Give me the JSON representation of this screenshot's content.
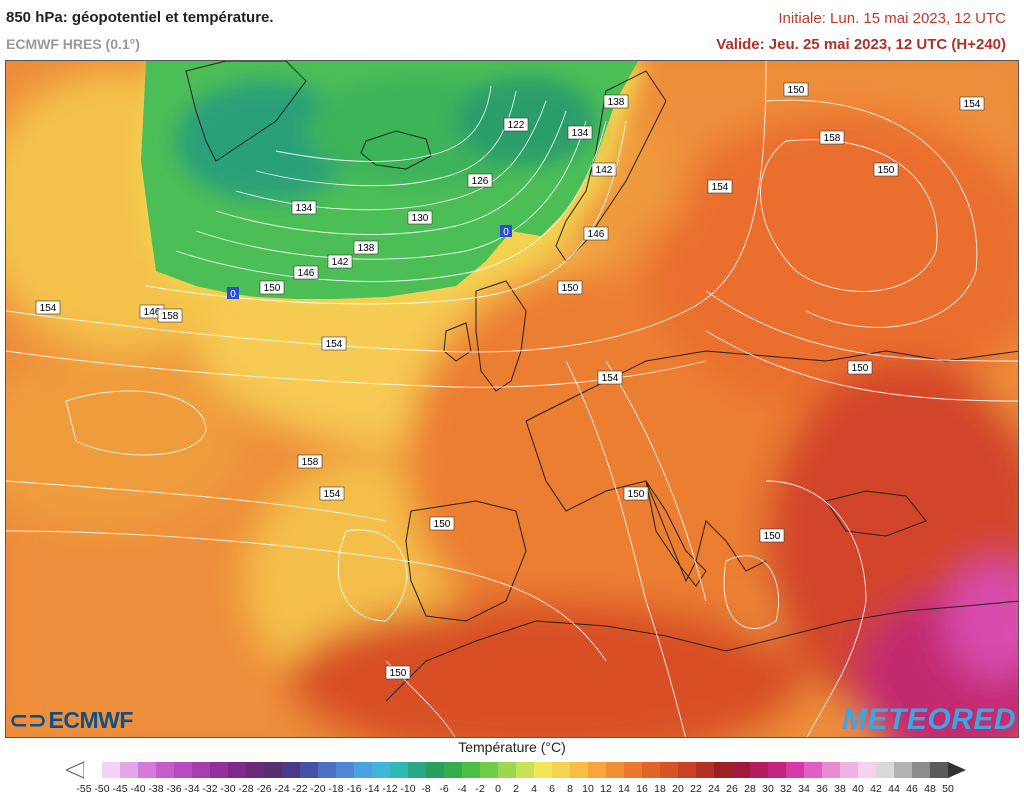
{
  "header": {
    "title": "850 hPa: géopotentiel et température.",
    "model": "ECMWF HRES (0.1°)",
    "init": "Initiale: Lun. 15 mai 2023, 12 UTC",
    "valid": "Valide: Jeu. 25 mai 2023, 12 UTC (H+240)"
  },
  "logos": {
    "left": "ECMWF",
    "right": "METEORED"
  },
  "legend": {
    "title": "Température (°C)",
    "ticks": [
      "-55",
      "-50",
      "-45",
      "-40",
      "-38",
      "-36",
      "-34",
      "-32",
      "-30",
      "-28",
      "-26",
      "-24",
      "-22",
      "-20",
      "-18",
      "-16",
      "-14",
      "-12",
      "-10",
      "-8",
      "-6",
      "-4",
      "-2",
      "0",
      "2",
      "4",
      "6",
      "8",
      "10",
      "12",
      "14",
      "16",
      "18",
      "20",
      "22",
      "24",
      "26",
      "28",
      "30",
      "32",
      "34",
      "36",
      "38",
      "40",
      "42",
      "44",
      "46",
      "48",
      "50"
    ],
    "colors": [
      "#ffffff",
      "#f2d3f2",
      "#e3a6e8",
      "#d47ad9",
      "#c65ccb",
      "#b84bbf",
      "#a63cae",
      "#92309b",
      "#7d2a89",
      "#6a2a7a",
      "#58306f",
      "#4b3a86",
      "#4553a6",
      "#4b6fc2",
      "#4c8ad6",
      "#4aa3e0",
      "#3fb6d9",
      "#2fb8b4",
      "#2aa886",
      "#27a05e",
      "#34ad4a",
      "#4cbe46",
      "#6fcd4c",
      "#9bd84f",
      "#c9e356",
      "#f0e85a",
      "#f6d44e",
      "#f7bd44",
      "#f6a53c",
      "#f28e34",
      "#ec782e",
      "#e36428",
      "#d85226",
      "#c94022",
      "#b52f22",
      "#9c2022",
      "#9e1a3a",
      "#b21d5c",
      "#c52480",
      "#d63aa6",
      "#e05fc0",
      "#e889d2",
      "#f0b3e2",
      "#f5d3ec",
      "#d9d9d9",
      "#b3b3b3",
      "#8c8c8c",
      "#5a5a5a"
    ]
  },
  "contour_labels": [
    "122",
    "126",
    "130",
    "134",
    "134",
    "138",
    "138",
    "142",
    "142",
    "146",
    "146",
    "150",
    "150",
    "150",
    "150",
    "150",
    "150",
    "150",
    "150",
    "150",
    "154",
    "154",
    "154",
    "154",
    "154",
    "154",
    "154",
    "146",
    "158",
    "158",
    "158"
  ],
  "front_markers": [
    "0",
    "0"
  ]
}
